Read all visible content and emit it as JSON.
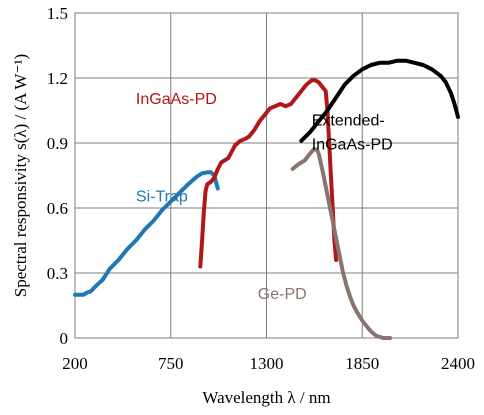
{
  "chart_data": {
    "type": "line",
    "title": "",
    "xlabel": "Wavelength λ / nm",
    "ylabel": "Spectral responsivity s(λ) / (A W⁻¹)",
    "xlim": [
      200,
      2400
    ],
    "ylim": [
      0,
      1.5
    ],
    "xticks": [
      200,
      750,
      1300,
      1850,
      2400
    ],
    "yticks": [
      0,
      0.3,
      0.6,
      0.9,
      1.2,
      1.5
    ],
    "xtick_labels": [
      "200",
      "750",
      "1300",
      "1850",
      "2400"
    ],
    "ytick_labels": [
      "0",
      "0.3",
      "0.6",
      "0.9",
      "1.2",
      "1.5"
    ],
    "grid": true,
    "legend": "none (series labelled directly on plot)",
    "series": [
      {
        "name": "Si-Trap",
        "color": "#1f77b4",
        "x": [
          200,
          250,
          270,
          290,
          320,
          360,
          400,
          450,
          500,
          550,
          600,
          650,
          700,
          750,
          800,
          850,
          900,
          930,
          960,
          980,
          1000,
          1010,
          1020
        ],
        "y": [
          0.2,
          0.2,
          0.21,
          0.215,
          0.24,
          0.27,
          0.32,
          0.36,
          0.41,
          0.45,
          0.5,
          0.54,
          0.59,
          0.63,
          0.67,
          0.71,
          0.745,
          0.76,
          0.765,
          0.765,
          0.75,
          0.72,
          0.69
        ]
      },
      {
        "name": "InGaAs-PD",
        "color": "#b01818",
        "x": [
          920,
          930,
          940,
          950,
          960,
          980,
          1000,
          1020,
          1040,
          1060,
          1080,
          1100,
          1120,
          1150,
          1180,
          1200,
          1230,
          1260,
          1290,
          1320,
          1350,
          1380,
          1410,
          1440,
          1470,
          1500,
          1530,
          1560,
          1580,
          1600,
          1620,
          1640,
          1650,
          1660,
          1670,
          1680,
          1690,
          1700
        ],
        "y": [
          0.33,
          0.45,
          0.58,
          0.68,
          0.71,
          0.72,
          0.74,
          0.78,
          0.81,
          0.82,
          0.83,
          0.86,
          0.89,
          0.91,
          0.92,
          0.93,
          0.96,
          1.0,
          1.03,
          1.06,
          1.07,
          1.08,
          1.07,
          1.08,
          1.11,
          1.14,
          1.17,
          1.19,
          1.19,
          1.18,
          1.16,
          1.14,
          1.05,
          0.9,
          0.75,
          0.6,
          0.45,
          0.36
        ]
      },
      {
        "name": "Extended-InGaAs-PD",
        "color": "#000000",
        "x": [
          1500,
          1550,
          1600,
          1650,
          1700,
          1750,
          1800,
          1850,
          1900,
          1950,
          2000,
          2050,
          2100,
          2150,
          2200,
          2250,
          2300,
          2330,
          2360,
          2380,
          2400
        ],
        "y": [
          0.91,
          0.95,
          1.0,
          1.05,
          1.11,
          1.17,
          1.21,
          1.24,
          1.26,
          1.27,
          1.27,
          1.28,
          1.28,
          1.27,
          1.26,
          1.24,
          1.21,
          1.18,
          1.13,
          1.08,
          1.02
        ]
      },
      {
        "name": "Ge-PD",
        "color": "#8b7470",
        "x": [
          1450,
          1480,
          1500,
          1520,
          1550,
          1570,
          1590,
          1600,
          1620,
          1640,
          1660,
          1680,
          1700,
          1720,
          1740,
          1760,
          1780,
          1800,
          1820,
          1850,
          1880,
          1900,
          1930,
          1950,
          1970,
          1990,
          2010
        ],
        "y": [
          0.78,
          0.8,
          0.81,
          0.82,
          0.85,
          0.87,
          0.87,
          0.85,
          0.78,
          0.7,
          0.62,
          0.54,
          0.46,
          0.38,
          0.3,
          0.24,
          0.19,
          0.15,
          0.12,
          0.08,
          0.05,
          0.03,
          0.01,
          0.005,
          0.0,
          0.0,
          0.0
        ]
      }
    ]
  }
}
